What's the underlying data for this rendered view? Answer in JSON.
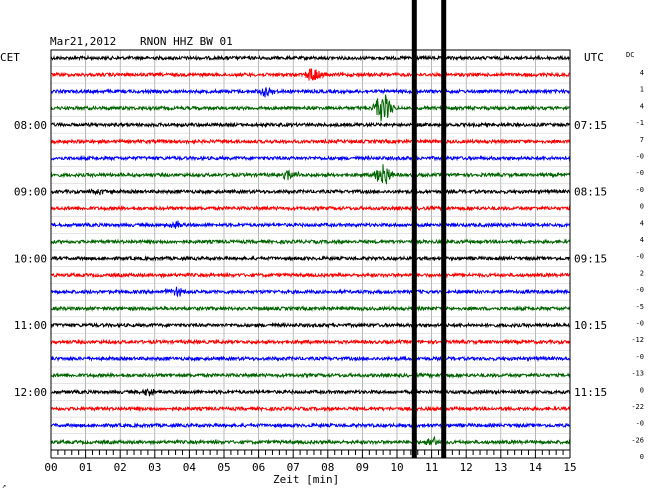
{
  "header": {
    "date": "Mar21,2012",
    "station": "RNON HHZ BW 01",
    "left_zone": "CET",
    "right_zone": "UTC",
    "dc_label": "DC"
  },
  "chart_data": {
    "type": "line",
    "title": "Mar21,2012   RNON HHZ BW 01",
    "xlabel": "Zeit [min]",
    "ylabel": "",
    "xlim": [
      0,
      15
    ],
    "x_ticks": [
      "00",
      "01",
      "02",
      "03",
      "04",
      "05",
      "06",
      "07",
      "08",
      "09",
      "10",
      "11",
      "12",
      "13",
      "14",
      "15"
    ],
    "grid": true,
    "trace_count": 24,
    "trace_colors": [
      "#000000",
      "#ff0000",
      "#0000ff",
      "#006400"
    ],
    "left_labels": [
      {
        "trace": 4,
        "text": "08:00"
      },
      {
        "trace": 8,
        "text": "09:00"
      },
      {
        "trace": 12,
        "text": "10:00"
      },
      {
        "trace": 16,
        "text": "11:00"
      },
      {
        "trace": 20,
        "text": "12:00"
      }
    ],
    "right_labels": [
      {
        "trace": 4,
        "text": "07:15"
      },
      {
        "trace": 8,
        "text": "08:15"
      },
      {
        "trace": 12,
        "text": "09:15"
      },
      {
        "trace": 16,
        "text": "10:15"
      },
      {
        "trace": 20,
        "text": "11:15"
      }
    ],
    "dc_offsets": [
      "4",
      "1",
      "4",
      "-1",
      "7",
      "-0",
      "-0",
      "-0",
      "0",
      "4",
      "4",
      "-0",
      "2",
      "-0",
      "-5",
      "-0",
      "-12",
      "-0",
      "-13",
      "0",
      "-22",
      "-0",
      "-26",
      "0"
    ],
    "vertical_markers_min": [
      10.5,
      11.35
    ],
    "events": [
      {
        "trace": 1,
        "minute": 7.6,
        "amplitude": 9
      },
      {
        "trace": 2,
        "minute": 6.2,
        "amplitude": 5
      },
      {
        "trace": 3,
        "minute": 9.6,
        "amplitude": 16
      },
      {
        "trace": 7,
        "minute": 6.9,
        "amplitude": 5
      },
      {
        "trace": 7,
        "minute": 9.6,
        "amplitude": 12
      },
      {
        "trace": 8,
        "minute": 1.4,
        "amplitude": 4
      },
      {
        "trace": 10,
        "minute": 3.6,
        "amplitude": 4
      },
      {
        "trace": 14,
        "minute": 3.6,
        "amplitude": 5
      },
      {
        "trace": 20,
        "minute": 2.8,
        "amplitude": 4
      },
      {
        "trace": 23,
        "minute": 11.0,
        "amplitude": 6
      }
    ],
    "noise_amplitude": 1.6
  },
  "corner_mark": "↗"
}
